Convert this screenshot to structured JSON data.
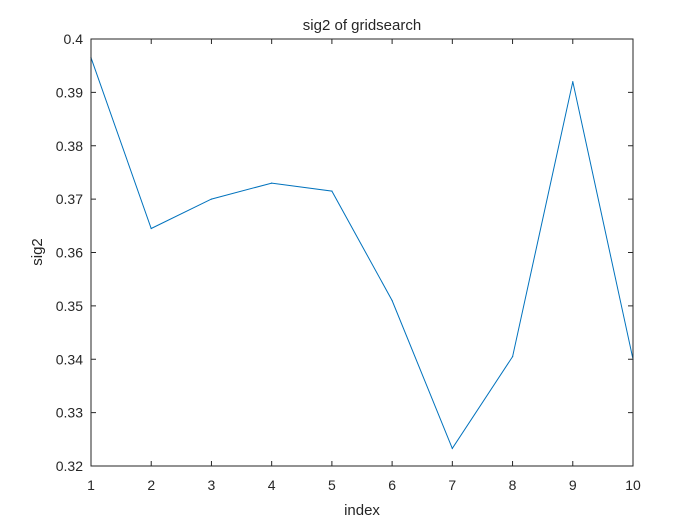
{
  "chart_data": {
    "type": "line",
    "title": "sig2 of gridsearch",
    "xlabel": "index",
    "ylabel": "sig2",
    "xlim": [
      1,
      10
    ],
    "ylim": [
      0.32,
      0.4
    ],
    "xticks": [
      1,
      2,
      3,
      4,
      5,
      6,
      7,
      8,
      9,
      10
    ],
    "xtick_labels": [
      "1",
      "2",
      "3",
      "4",
      "5",
      "6",
      "7",
      "8",
      "9",
      "10"
    ],
    "yticks": [
      0.32,
      0.33,
      0.34,
      0.35,
      0.36,
      0.37,
      0.38,
      0.39,
      0.4
    ],
    "ytick_labels": [
      "0.32",
      "0.33",
      "0.34",
      "0.35",
      "0.36",
      "0.37",
      "0.38",
      "0.39",
      "0.4"
    ],
    "grid": false,
    "series": [
      {
        "color": "#0072BD",
        "x": [
          1,
          2,
          3,
          4,
          5,
          6,
          7,
          8,
          9,
          10
        ],
        "values": [
          0.3965,
          0.3645,
          0.37,
          0.373,
          0.3715,
          0.351,
          0.3233,
          0.3405,
          0.392,
          0.34
        ]
      }
    ]
  }
}
